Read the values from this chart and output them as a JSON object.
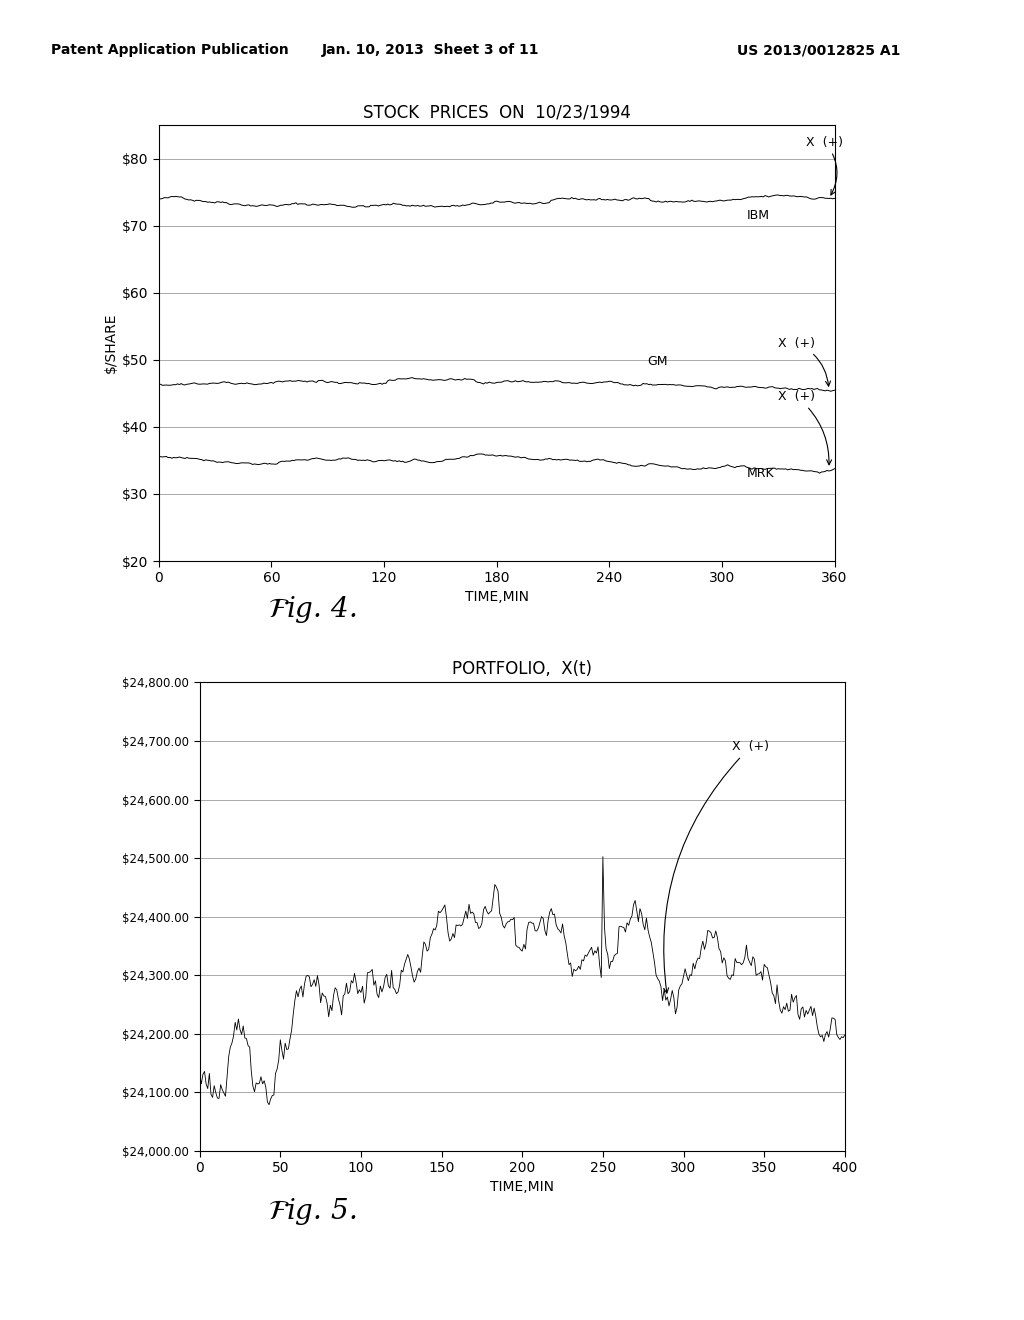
{
  "fig4_title": "STOCK  PRICES  ON  10/23/1994",
  "fig4_xlabel": "TIME,MIN",
  "fig4_ylabel": "$/SHARE",
  "fig4_xlim": [
    0,
    360
  ],
  "fig4_ylim": [
    20,
    85
  ],
  "fig4_xticks": [
    0,
    60,
    120,
    180,
    240,
    300,
    360
  ],
  "fig4_yticks": [
    20,
    30,
    40,
    50,
    60,
    70,
    80
  ],
  "fig4_ytick_labels": [
    "$20",
    "$30",
    "$40",
    "$50",
    "$60",
    "$70",
    "$80"
  ],
  "ibm_base": 74.0,
  "gm_base": 46.5,
  "mrk_base": 35.5,
  "fig5_title": "PORTFOLIO,  X(t)",
  "fig5_xlabel": "TIME,MIN",
  "fig5_xlim": [
    0,
    400
  ],
  "fig5_ylim": [
    24000,
    24800
  ],
  "fig5_xticks": [
    0,
    50,
    100,
    150,
    200,
    250,
    300,
    350,
    400
  ],
  "fig5_yticks": [
    24000,
    24100,
    24200,
    24300,
    24400,
    24500,
    24600,
    24700,
    24800
  ],
  "fig5_ytick_labels": [
    "$24,000.00",
    "$24,100.00",
    "$24,200.00",
    "$24,300.00",
    "$24,400.00",
    "$24,500.00",
    "$24,600.00",
    "$24,700.00",
    "$24,800.00"
  ],
  "header_left": "Patent Application Publication",
  "header_mid": "Jan. 10, 2013  Sheet 3 of 11",
  "header_right": "US 2013/0012825 A1",
  "axis_font": 10,
  "title_font": 12
}
